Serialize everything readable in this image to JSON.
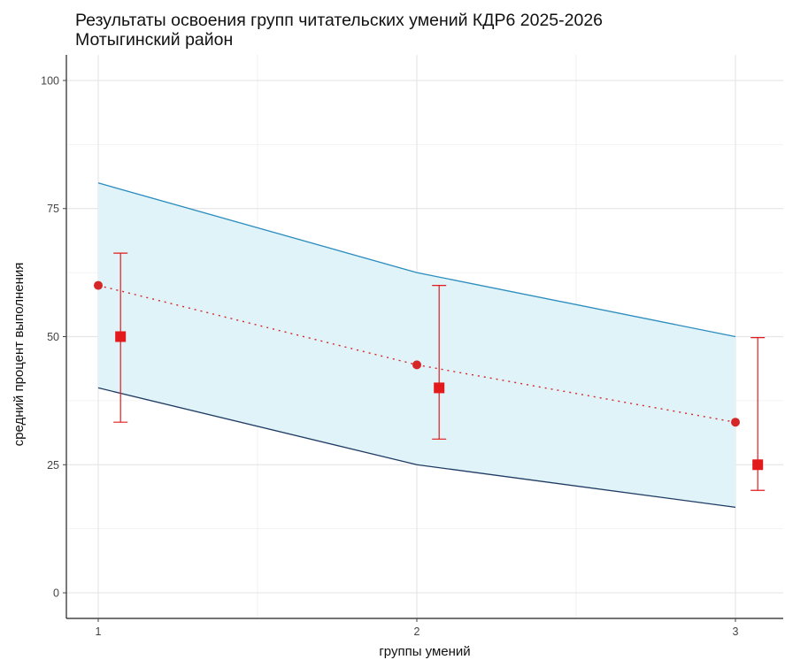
{
  "chart_data": {
    "type": "line",
    "title": "Результаты освоения групп читательских умений КДР6 2025-2026",
    "subtitle": "Мотыгинский район",
    "xlabel": "группы умений",
    "ylabel": "средний процент выполнения",
    "x": [
      1,
      2,
      3
    ],
    "x_ticks": [
      "1",
      "2",
      "3"
    ],
    "y_ticks": [
      "0",
      "25",
      "50",
      "75",
      "100"
    ],
    "xlim": [
      0.9,
      3.15
    ],
    "ylim": [
      -5,
      105
    ],
    "grid": true,
    "band": {
      "upper": [
        80,
        62.5,
        50
      ],
      "lower": [
        40,
        25,
        16.7
      ],
      "fill": "#dff3f8",
      "upper_color": "#2b8cbe",
      "lower_color": "#1f3b63"
    },
    "series": [
      {
        "style": "points-dotted-line",
        "x": [
          1,
          2,
          3
        ],
        "values": [
          60,
          44.5,
          33.3
        ],
        "color": "#d62728"
      },
      {
        "style": "square-errorbar",
        "x": [
          1.07,
          2.07,
          3.07
        ],
        "values": [
          50,
          40,
          25
        ],
        "low": [
          33.3,
          30,
          20
        ],
        "high": [
          66.3,
          60,
          49.8
        ],
        "color": "#e31a1c"
      }
    ]
  }
}
